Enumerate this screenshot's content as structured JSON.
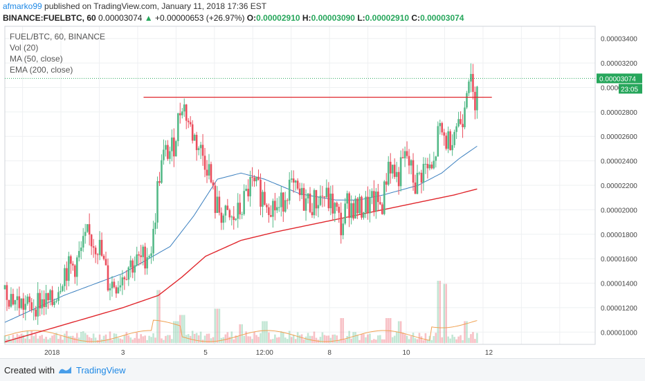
{
  "header": {
    "user": "afmarko99",
    "published_text": " published on TradingView.com, January 11, 2018 17:36 EST",
    "symbol": "BINANCE:FUELBTC, 60",
    "price": "0.00003074",
    "change_arrow": "▲",
    "change": "+0.00000653 (+26.97%)",
    "o_label": "O:",
    "o_value": "0.00002910",
    "h_label": "H:",
    "h_value": "0.00003090",
    "l_label": "L:",
    "l_value": "0.00002910",
    "c_label": "C:",
    "c_value": "0.00003074"
  },
  "legend": {
    "title": "FUEL/BTC, 60, BINANCE",
    "vol": "Vol (20)",
    "ma": "MA (50, close)",
    "ema": "EMA (200, close)"
  },
  "footer": {
    "created_with": "Created with",
    "brand": "TradingView"
  },
  "colors": {
    "up": "#53b987",
    "down": "#eb4d5c",
    "ma": "#3a7fbf",
    "ema": "#e0262c",
    "vol_ma": "#f0a050",
    "price_tag": "#26a65b",
    "resistance": "#e0262c"
  },
  "chart_data": {
    "type": "candlestick",
    "y_range": [
      9e-06,
      3.5e-05
    ],
    "y_ticks": [
      "0.00001000",
      "0.00001200",
      "0.00001400",
      "0.00001600",
      "0.00001800",
      "0.00002000",
      "0.00002200",
      "0.00002400",
      "0.00002600",
      "0.00002800",
      "0.00003000",
      "0.00003200",
      "0.00003400"
    ],
    "x_ticks": [
      {
        "label": "2018",
        "x": 0.08
      },
      {
        "label": "3",
        "x": 0.2
      },
      {
        "label": "5",
        "x": 0.34
      },
      {
        "label": "12:00",
        "x": 0.44
      },
      {
        "label": "8",
        "x": 0.55
      },
      {
        "label": "10",
        "x": 0.68
      },
      {
        "label": "12",
        "x": 0.82
      }
    ],
    "current_price_label": "0.00003074",
    "countdown_label": "23:05",
    "resistance_level": 2.92e-05,
    "resistance_x_range": [
      0.235,
      0.825
    ],
    "close_path": [
      [
        0.0,
        1.35e-05
      ],
      [
        0.02,
        1.25e-05
      ],
      [
        0.04,
        1.2e-05
      ],
      [
        0.06,
        1.26e-05
      ],
      [
        0.08,
        1.23e-05
      ],
      [
        0.1,
        1.5e-05
      ],
      [
        0.12,
        1.55e-05
      ],
      [
        0.14,
        1.78e-05
      ],
      [
        0.16,
        1.7e-05
      ],
      [
        0.175,
        1.4e-05
      ],
      [
        0.19,
        1.4e-05
      ],
      [
        0.21,
        1.55e-05
      ],
      [
        0.23,
        1.58e-05
      ],
      [
        0.25,
        1.7e-05
      ],
      [
        0.26,
        2.25e-05
      ],
      [
        0.27,
        2.45e-05
      ],
      [
        0.285,
        2.5e-05
      ],
      [
        0.3,
        2.9e-05
      ],
      [
        0.315,
        2.65e-05
      ],
      [
        0.33,
        2.5e-05
      ],
      [
        0.345,
        2.35e-05
      ],
      [
        0.355,
        2.05e-05
      ],
      [
        0.37,
        1.95e-05
      ],
      [
        0.385,
        1.9e-05
      ],
      [
        0.4,
        2e-05
      ],
      [
        0.415,
        2.2e-05
      ],
      [
        0.43,
        2.15e-05
      ],
      [
        0.45,
        2.05e-05
      ],
      [
        0.465,
        2e-05
      ],
      [
        0.48,
        2.2e-05
      ],
      [
        0.5,
        2.1e-05
      ],
      [
        0.52,
        2.05e-05
      ],
      [
        0.54,
        2.12e-05
      ],
      [
        0.56,
        2e-05
      ],
      [
        0.57,
        1.85e-05
      ],
      [
        0.58,
        2.05e-05
      ],
      [
        0.6,
        2e-05
      ],
      [
        0.62,
        2.05e-05
      ],
      [
        0.64,
        2.05e-05
      ],
      [
        0.65,
        2.4e-05
      ],
      [
        0.665,
        2.25e-05
      ],
      [
        0.68,
        2.45e-05
      ],
      [
        0.695,
        2.2e-05
      ],
      [
        0.71,
        2.35e-05
      ],
      [
        0.725,
        2.3e-05
      ],
      [
        0.735,
        2.65e-05
      ],
      [
        0.75,
        2.55e-05
      ],
      [
        0.765,
        2.7e-05
      ],
      [
        0.775,
        2.75e-05
      ],
      [
        0.785,
        3.15e-05
      ],
      [
        0.795,
        2.85e-05
      ],
      [
        0.8,
        3.074e-05
      ]
    ],
    "ma_path": [
      [
        0.0,
        1.08e-05
      ],
      [
        0.1,
        1.3e-05
      ],
      [
        0.2,
        1.48e-05
      ],
      [
        0.28,
        1.7e-05
      ],
      [
        0.32,
        1.95e-05
      ],
      [
        0.36,
        2.25e-05
      ],
      [
        0.4,
        2.3e-05
      ],
      [
        0.44,
        2.25e-05
      ],
      [
        0.5,
        2.13e-05
      ],
      [
        0.56,
        2.08e-05
      ],
      [
        0.6,
        2.08e-05
      ],
      [
        0.64,
        2.12e-05
      ],
      [
        0.7,
        2.2e-05
      ],
      [
        0.74,
        2.3e-05
      ],
      [
        0.77,
        2.42e-05
      ],
      [
        0.8,
        2.52e-05
      ]
    ],
    "ema_path": [
      [
        0.0,
        9.2e-06
      ],
      [
        0.1,
        1.06e-05
      ],
      [
        0.2,
        1.2e-05
      ],
      [
        0.26,
        1.3e-05
      ],
      [
        0.3,
        1.45e-05
      ],
      [
        0.34,
        1.62e-05
      ],
      [
        0.4,
        1.75e-05
      ],
      [
        0.46,
        1.82e-05
      ],
      [
        0.54,
        1.9e-05
      ],
      [
        0.6,
        1.96e-05
      ],
      [
        0.66,
        2.02e-05
      ],
      [
        0.72,
        2.08e-05
      ],
      [
        0.76,
        2.12e-05
      ],
      [
        0.8,
        2.17e-05
      ]
    ],
    "volume_spikes": [
      {
        "x": 0.26,
        "h": 0.85
      },
      {
        "x": 0.29,
        "h": 0.35
      },
      {
        "x": 0.3,
        "h": 0.45
      },
      {
        "x": 0.36,
        "h": 0.55
      },
      {
        "x": 0.4,
        "h": 0.3
      },
      {
        "x": 0.44,
        "h": 0.35
      },
      {
        "x": 0.57,
        "h": 0.4
      },
      {
        "x": 0.65,
        "h": 0.4
      },
      {
        "x": 0.67,
        "h": 0.35
      },
      {
        "x": 0.735,
        "h": 1.0
      },
      {
        "x": 0.745,
        "h": 0.95
      },
      {
        "x": 0.78,
        "h": 0.35
      }
    ]
  }
}
